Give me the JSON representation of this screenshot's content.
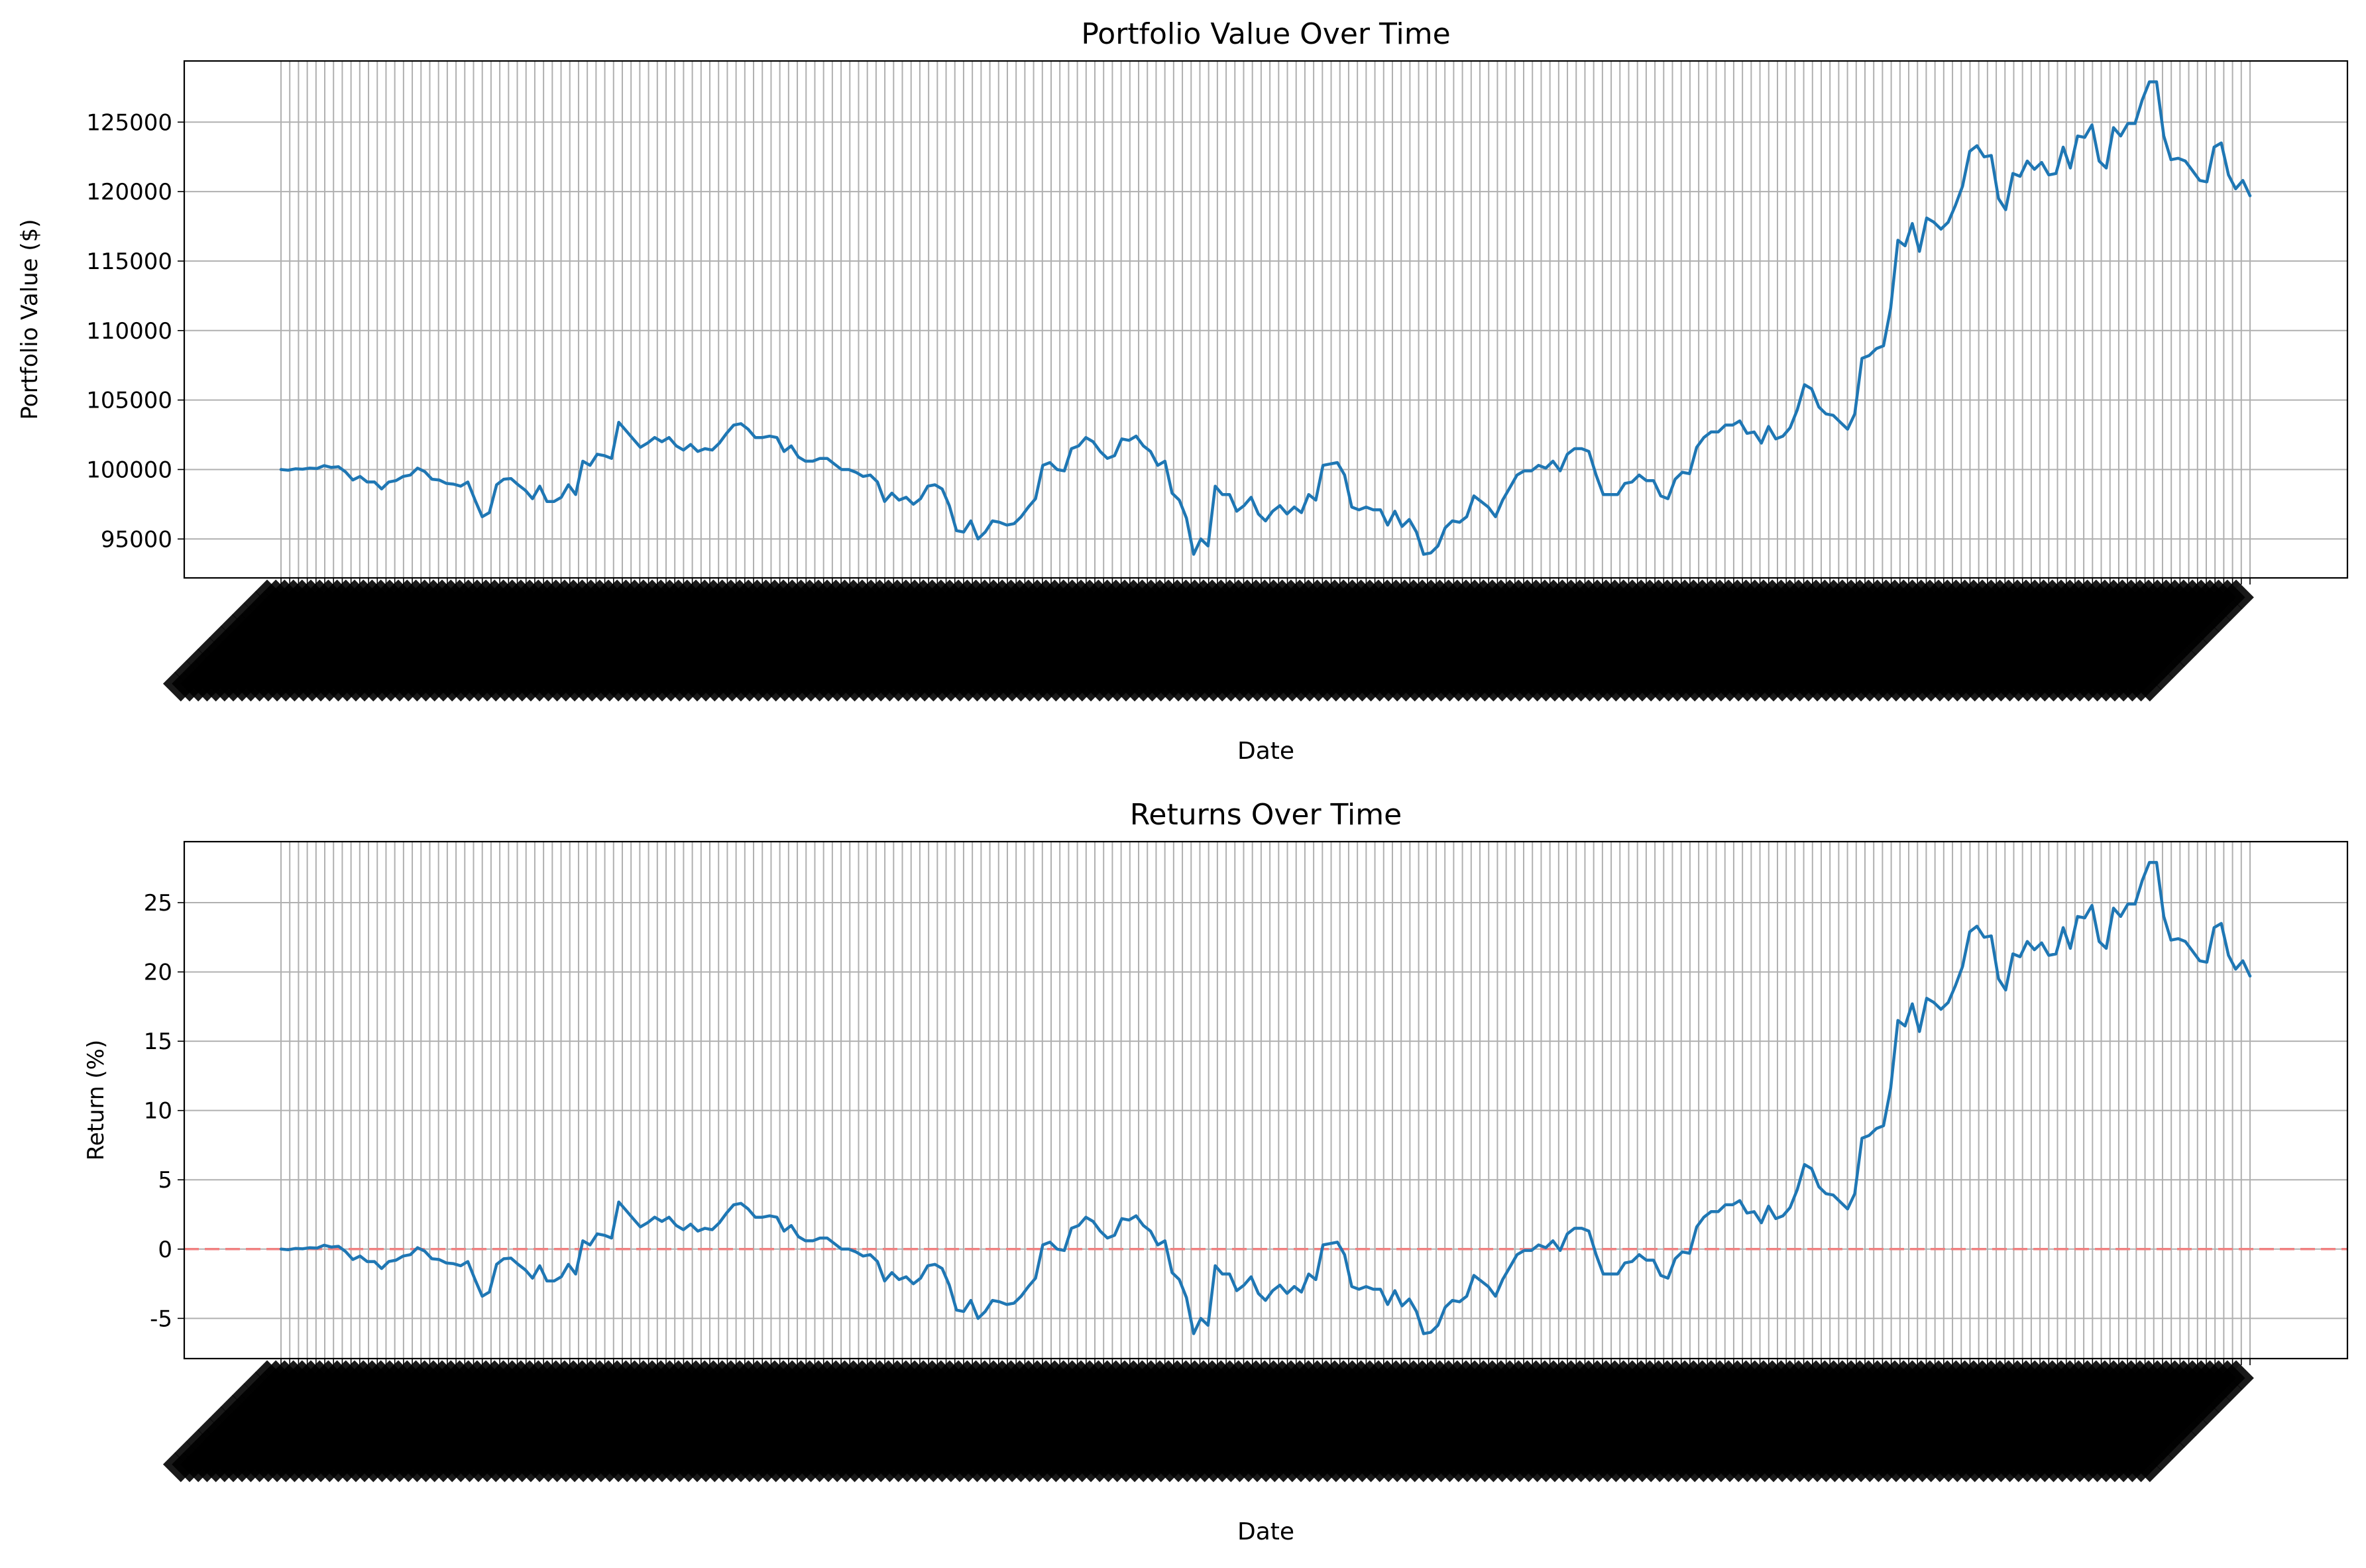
{
  "chart_data": [
    {
      "type": "line",
      "title": "Portfolio Value Over Time",
      "xlabel": "Date",
      "ylabel": "Portfolio Value ($)",
      "grid": true,
      "ylim": [
        92200,
        129400
      ],
      "yticks": [
        95000,
        100000,
        105000,
        110000,
        115000,
        120000,
        125000
      ],
      "x_tick_labels_note": "dense overlapping rotated date labels (illegible)",
      "series": [
        {
          "color": "#1f77b4",
          "values": [
            100000,
            99950,
            100050,
            100020,
            100100,
            100070,
            100280,
            100150,
            100200,
            99820,
            99250,
            99500,
            99100,
            99100,
            98600,
            99100,
            99200,
            99500,
            99600,
            100100,
            99850,
            99300,
            99250,
            99000,
            98950,
            98800,
            99100,
            97800,
            96600,
            96900,
            98900,
            99300,
            99350,
            98900,
            98500,
            97900,
            98800,
            97700,
            97700,
            98000,
            98900,
            98200,
            100600,
            100300,
            101100,
            101000,
            100800,
            103400,
            102800,
            102200,
            101600,
            101900,
            102300,
            102000,
            102300,
            101700,
            101400,
            101800,
            101300,
            101500,
            101400,
            101900,
            102600,
            103200,
            103300,
            102900,
            102300,
            102300,
            102400,
            102300,
            101300,
            101700,
            100900,
            100600,
            100600,
            100800,
            100800,
            100400,
            100000,
            100000,
            99800,
            99500,
            99600,
            99100,
            97700,
            98300,
            97800,
            98000,
            97500,
            97900,
            98800,
            98900,
            98600,
            97400,
            95600,
            95500,
            96300,
            95000,
            95500,
            96300,
            96200,
            96000,
            96100,
            96600,
            97300,
            97900,
            100300,
            100500,
            100000,
            99900,
            101500,
            101700,
            102300,
            102000,
            101300,
            100800,
            101000,
            102200,
            102100,
            102400,
            101700,
            101300,
            100300,
            100600,
            98300,
            97800,
            96500,
            93900,
            95000,
            94500,
            98800,
            98200,
            98200,
            97000,
            97400,
            98000,
            96800,
            96300,
            97000,
            97400,
            96800,
            97300,
            96900,
            98200,
            97800,
            100300,
            100400,
            100500,
            99600,
            97300,
            97100,
            97300,
            97100,
            97100,
            96000,
            97000,
            95900,
            96400,
            95500,
            93900,
            94000,
            94500,
            95800,
            96300,
            96200,
            96600,
            98100,
            97700,
            97300,
            96600,
            97800,
            98700,
            99600,
            99900,
            99900,
            100300,
            100100,
            100600,
            99900,
            101100,
            101500,
            101500,
            101300,
            99600,
            98200,
            98200,
            98200,
            99000,
            99100,
            99600,
            99200,
            99200,
            98100,
            97900,
            99300,
            99800,
            99700,
            101600,
            102300,
            102700,
            102700,
            103200,
            103200,
            103500,
            102600,
            102700,
            101900,
            103100,
            102200,
            102400,
            103000,
            104300,
            106100,
            105800,
            104500,
            104000,
            103900,
            103400,
            102900,
            104000,
            108000,
            108200,
            108700,
            108900,
            111600,
            116500,
            116100,
            117700,
            115700,
            118100,
            117800,
            117300,
            117800,
            119000,
            120400,
            122900,
            123300,
            122500,
            122600,
            119500,
            118700,
            121300,
            121100,
            122200,
            121600,
            122100,
            121200,
            121300,
            123200,
            121700,
            124000,
            123900,
            124800,
            122200,
            121700,
            124600,
            124000,
            124900,
            124900,
            126600,
            127900,
            127900,
            124000,
            122300,
            122400,
            122200,
            121500,
            120800,
            120700,
            123200,
            123500,
            121200,
            120200,
            120800,
            119700
          ]
        }
      ]
    },
    {
      "type": "line",
      "title": "Returns Over Time",
      "xlabel": "Date",
      "ylabel": "Return (%)",
      "grid": true,
      "ylim": [
        -7.9,
        29.4
      ],
      "yticks": [
        -5,
        0,
        5,
        10,
        15,
        20,
        25
      ],
      "reference_line": {
        "y": 0,
        "color": "#f08080",
        "style": "dashed"
      },
      "x_tick_labels_note": "dense overlapping rotated date labels (illegible)",
      "series": [
        {
          "color": "#1f77b4",
          "values": [
            0.0,
            -0.05,
            0.05,
            0.02,
            0.1,
            0.07,
            0.28,
            0.15,
            0.2,
            -0.18,
            -0.75,
            -0.5,
            -0.9,
            -0.9,
            -1.4,
            -0.9,
            -0.8,
            -0.5,
            -0.4,
            0.1,
            -0.15,
            -0.7,
            -0.75,
            -1.0,
            -1.05,
            -1.2,
            -0.9,
            -2.2,
            -3.4,
            -3.1,
            -1.1,
            -0.7,
            -0.65,
            -1.1,
            -1.5,
            -2.1,
            -1.2,
            -2.3,
            -2.3,
            -2.0,
            -1.1,
            -1.8,
            0.6,
            0.3,
            1.1,
            1.0,
            0.8,
            3.4,
            2.8,
            2.2,
            1.6,
            1.9,
            2.3,
            2.0,
            2.3,
            1.7,
            1.4,
            1.8,
            1.3,
            1.5,
            1.4,
            1.9,
            2.6,
            3.2,
            3.3,
            2.9,
            2.3,
            2.3,
            2.4,
            2.3,
            1.3,
            1.7,
            0.9,
            0.6,
            0.6,
            0.8,
            0.8,
            0.4,
            0.0,
            0.0,
            -0.2,
            -0.5,
            -0.4,
            -0.9,
            -2.3,
            -1.7,
            -2.2,
            -2.0,
            -2.5,
            -2.1,
            -1.2,
            -1.1,
            -1.4,
            -2.6,
            -4.4,
            -4.5,
            -3.7,
            -5.0,
            -4.5,
            -3.7,
            -3.8,
            -4.0,
            -3.9,
            -3.4,
            -2.7,
            -2.1,
            0.3,
            0.5,
            0.0,
            -0.1,
            1.5,
            1.7,
            2.3,
            2.0,
            1.3,
            0.8,
            1.0,
            2.2,
            2.1,
            2.4,
            1.7,
            1.3,
            0.3,
            0.6,
            -1.7,
            -2.2,
            -3.5,
            -6.1,
            -5.0,
            -5.5,
            -1.2,
            -1.8,
            -1.8,
            -3.0,
            -2.6,
            -2.0,
            -3.2,
            -3.7,
            -3.0,
            -2.6,
            -3.2,
            -2.7,
            -3.1,
            -1.8,
            -2.2,
            0.3,
            0.4,
            0.5,
            -0.4,
            -2.7,
            -2.9,
            -2.7,
            -2.9,
            -2.9,
            -4.0,
            -3.0,
            -4.1,
            -3.6,
            -4.5,
            -6.1,
            -6.0,
            -5.5,
            -4.2,
            -3.7,
            -3.8,
            -3.4,
            -1.9,
            -2.3,
            -2.7,
            -3.4,
            -2.2,
            -1.3,
            -0.4,
            -0.1,
            -0.1,
            0.3,
            0.1,
            0.6,
            -0.1,
            1.1,
            1.5,
            1.5,
            1.3,
            -0.4,
            -1.8,
            -1.8,
            -1.8,
            -1.0,
            -0.9,
            -0.4,
            -0.8,
            -0.8,
            -1.9,
            -2.1,
            -0.7,
            -0.2,
            -0.3,
            1.6,
            2.3,
            2.7,
            2.7,
            3.2,
            3.2,
            3.5,
            2.6,
            2.7,
            1.9,
            3.1,
            2.2,
            2.4,
            3.0,
            4.3,
            6.1,
            5.8,
            4.5,
            4.0,
            3.9,
            3.4,
            2.9,
            4.0,
            8.0,
            8.2,
            8.7,
            8.9,
            11.6,
            16.5,
            16.1,
            17.7,
            15.7,
            18.1,
            17.8,
            17.3,
            17.8,
            19.0,
            20.4,
            22.9,
            23.3,
            22.5,
            22.6,
            19.5,
            18.7,
            21.3,
            21.1,
            22.2,
            21.6,
            22.1,
            21.2,
            21.3,
            23.2,
            21.7,
            24.0,
            23.9,
            24.8,
            22.2,
            21.7,
            24.6,
            24.0,
            24.9,
            24.9,
            26.6,
            27.9,
            27.9,
            24.0,
            22.3,
            22.4,
            22.2,
            21.5,
            20.8,
            20.7,
            23.2,
            23.5,
            21.2,
            20.2,
            20.8,
            19.7
          ]
        }
      ]
    }
  ]
}
